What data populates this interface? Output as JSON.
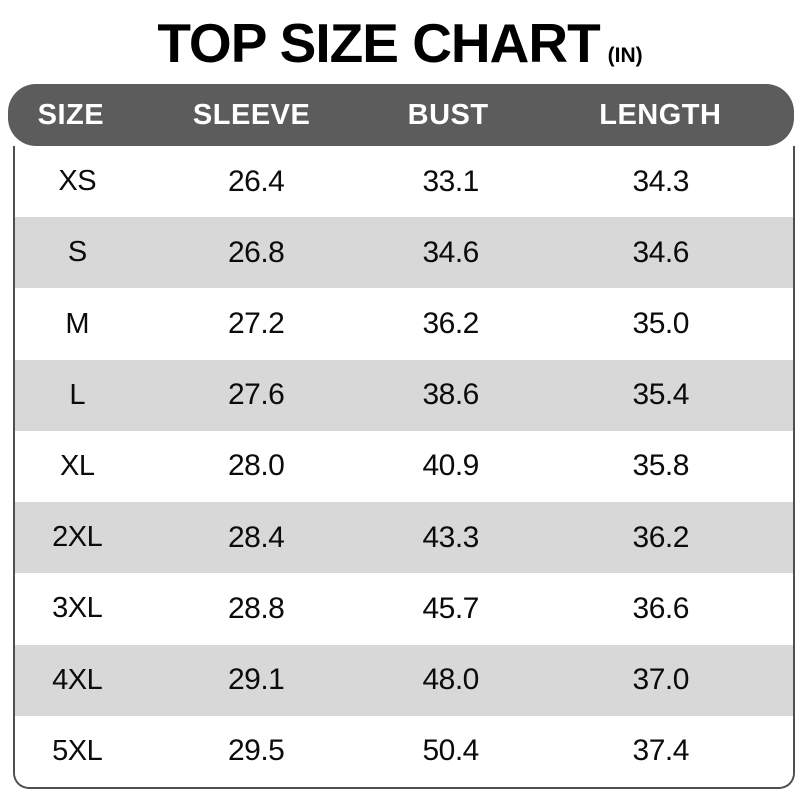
{
  "title": {
    "main": "TOP SIZE CHART",
    "unit": "(IN)"
  },
  "table": {
    "columns": [
      {
        "key": "size",
        "label": "SIZE"
      },
      {
        "key": "sleeve",
        "label": "SLEEVE"
      },
      {
        "key": "bust",
        "label": "BUST"
      },
      {
        "key": "length",
        "label": "LENGTH"
      }
    ],
    "rows": [
      {
        "size": "XS",
        "sleeve": "26.4",
        "bust": "33.1",
        "length": "34.3"
      },
      {
        "size": "S",
        "sleeve": "26.8",
        "bust": "34.6",
        "length": "34.6"
      },
      {
        "size": "M",
        "sleeve": "27.2",
        "bust": "36.2",
        "length": "35.0"
      },
      {
        "size": "L",
        "sleeve": "27.6",
        "bust": "38.6",
        "length": "35.4"
      },
      {
        "size": "XL",
        "sleeve": "28.0",
        "bust": "40.9",
        "length": "35.8"
      },
      {
        "size": "2XL",
        "sleeve": "28.4",
        "bust": "43.3",
        "length": "36.2"
      },
      {
        "size": "3XL",
        "sleeve": "28.8",
        "bust": "45.7",
        "length": "36.6"
      },
      {
        "size": "4XL",
        "sleeve": "29.1",
        "bust": "48.0",
        "length": "37.0"
      },
      {
        "size": "5XL",
        "sleeve": "29.5",
        "bust": "50.4",
        "length": "37.4"
      }
    ]
  },
  "colors": {
    "page_bg": "#ffffff",
    "title_color": "#000000",
    "header_bg": "#5c5c5c",
    "header_text": "#ffffff",
    "row_bg": "#ffffff",
    "row_alt_bg": "#d8d8d8",
    "border": "#4f4f50"
  },
  "chart_data": {
    "type": "table",
    "title": "TOP SIZE CHART (IN)",
    "columns": [
      "SIZE",
      "SLEEVE",
      "BUST",
      "LENGTH"
    ],
    "rows": [
      [
        "XS",
        26.4,
        33.1,
        34.3
      ],
      [
        "S",
        26.8,
        34.6,
        34.6
      ],
      [
        "M",
        27.2,
        36.2,
        35.0
      ],
      [
        "L",
        27.6,
        38.6,
        35.4
      ],
      [
        "XL",
        28.0,
        40.9,
        35.8
      ],
      [
        "2XL",
        28.4,
        43.3,
        36.2
      ],
      [
        "3XL",
        28.8,
        45.7,
        36.6
      ],
      [
        "4XL",
        29.1,
        48.0,
        37.0
      ],
      [
        "5XL",
        29.5,
        50.4,
        37.4
      ]
    ],
    "layout": {
      "header_style": "dark-rounded-bar",
      "zebra_striping": true,
      "first_striped_row_index": 1
    }
  }
}
